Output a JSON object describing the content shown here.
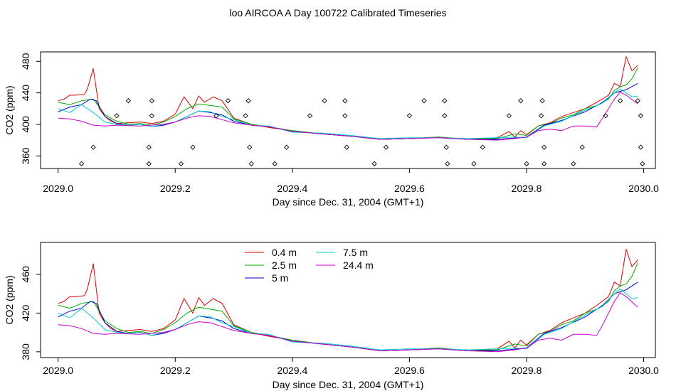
{
  "title": "loo AIRCOA A  Day 100722  Calibrated Timeseries",
  "chart_data": [
    {
      "type": "line",
      "xlabel": "Day since Dec. 31, 2004 (GMT+1)",
      "ylabel": "CO2 (ppm)",
      "xlim": [
        2028.97,
        2030.02
      ],
      "ylim": [
        344,
        492
      ],
      "xticks": [
        2029.0,
        2029.2,
        2029.4,
        2029.6,
        2029.8,
        2030.0
      ],
      "xtick_labels": [
        "2029.0",
        "2029.2",
        "2029.4",
        "2029.6",
        "2029.8",
        "2030.0"
      ],
      "yticks": [
        360,
        400,
        440,
        480
      ],
      "ytick_labels": [
        "360",
        "400",
        "440",
        "480"
      ],
      "legend": null,
      "diamond_markers": {
        "x": [
          2029.04,
          2029.06,
          2029.1,
          2029.12,
          2029.155,
          2029.155,
          2029.16,
          2029.16,
          2029.21,
          2029.23,
          2029.27,
          2029.29,
          2029.32,
          2029.325,
          2029.327,
          2029.33,
          2029.37,
          2029.39,
          2029.43,
          2029.455,
          2029.49,
          2029.49,
          2029.493,
          2029.54,
          2029.56,
          2029.6,
          2029.625,
          2029.66,
          2029.66,
          2029.663,
          2029.665,
          2029.71,
          2029.725,
          2029.77,
          2029.79,
          2029.8,
          2029.825,
          2029.827,
          2029.83,
          2029.83,
          2029.88,
          2029.895,
          2029.935,
          2029.96,
          2029.99,
          2029.995,
          2029.995,
          2029.998
        ],
        "y": [
          350,
          371,
          411,
          430,
          350,
          371,
          411,
          430,
          350,
          371,
          411,
          430,
          411,
          430,
          371,
          350,
          350,
          371,
          411,
          430,
          411,
          430,
          371,
          350,
          371,
          411,
          430,
          411,
          430,
          371,
          350,
          350,
          371,
          411,
          430,
          350,
          411,
          430,
          371,
          350,
          350,
          371,
          411,
          430,
          430,
          411,
          371,
          350
        ]
      }
    },
    {
      "type": "line",
      "xlabel": "Day since Dec. 31, 2004 (GMT+1)",
      "ylabel": "CO2 (ppm)",
      "xlim": [
        2028.97,
        2030.02
      ],
      "ylim": [
        374,
        493
      ],
      "xticks": [
        2029.0,
        2029.2,
        2029.4,
        2029.6,
        2029.8,
        2030.0
      ],
      "xtick_labels": [
        "2029.0",
        "2029.2",
        "2029.4",
        "2029.6",
        "2029.8",
        "2030.0"
      ],
      "yticks": [
        380,
        420,
        460
      ],
      "ytick_labels": [
        "380",
        "420",
        "460"
      ],
      "legend": "top-left",
      "legend_entries": [
        "0.4 m",
        "2.5 m",
        "5 m",
        "7.5 m",
        "24.4 m"
      ]
    }
  ],
  "series": [
    {
      "name": "0.4 m",
      "color": "#dd0000",
      "x": [
        2029.0,
        2029.01,
        2029.02,
        2029.03,
        2029.045,
        2029.05,
        2029.06,
        2029.07,
        2029.08,
        2029.09,
        2029.1,
        2029.12,
        2029.14,
        2029.16,
        2029.18,
        2029.2,
        2029.215,
        2029.23,
        2029.24,
        2029.25,
        2029.265,
        2029.28,
        2029.3,
        2029.33,
        2029.36,
        2029.4,
        2029.45,
        2029.5,
        2029.55,
        2029.6,
        2029.65,
        2029.7,
        2029.75,
        2029.77,
        2029.78,
        2029.79,
        2029.8,
        2029.82,
        2029.84,
        2029.86,
        2029.88,
        2029.9,
        2029.92,
        2029.94,
        2029.95,
        2029.96,
        2029.97,
        2029.98,
        2029.99
      ],
      "y": [
        430,
        432,
        437,
        437,
        438,
        445,
        471,
        420,
        410,
        404,
        401,
        402,
        403,
        401,
        404,
        413,
        435,
        420,
        436,
        428,
        435,
        430,
        408,
        400,
        396,
        392,
        388,
        385,
        381,
        382,
        384,
        381,
        383,
        391,
        384,
        392,
        387,
        398,
        402,
        410,
        415,
        420,
        428,
        437,
        452,
        448,
        486,
        468,
        475
      ]
    },
    {
      "name": "2.5 m",
      "color": "#00aa00",
      "x": [
        2029.0,
        2029.02,
        2029.04,
        2029.06,
        2029.08,
        2029.1,
        2029.12,
        2029.14,
        2029.16,
        2029.18,
        2029.2,
        2029.22,
        2029.24,
        2029.26,
        2029.28,
        2029.3,
        2029.33,
        2029.36,
        2029.4,
        2029.45,
        2029.5,
        2029.55,
        2029.6,
        2029.65,
        2029.7,
        2029.75,
        2029.78,
        2029.8,
        2029.82,
        2029.84,
        2029.86,
        2029.88,
        2029.9,
        2029.92,
        2029.94,
        2029.95,
        2029.96,
        2029.97,
        2029.98,
        2029.99
      ],
      "y": [
        428,
        425,
        430,
        432,
        412,
        404,
        400,
        401,
        399,
        403,
        410,
        420,
        426,
        424,
        422,
        407,
        400,
        397,
        392,
        388,
        385,
        381,
        382,
        384,
        381,
        382,
        388,
        386,
        398,
        401,
        408,
        412,
        420,
        424,
        432,
        443,
        448,
        450,
        458,
        472
      ]
    },
    {
      "name": "5 m",
      "color": "#0000cc",
      "x": [
        2029.0,
        2029.02,
        2029.04,
        2029.055,
        2029.065,
        2029.08,
        2029.1,
        2029.12,
        2029.14,
        2029.16,
        2029.18,
        2029.2,
        2029.22,
        2029.24,
        2029.26,
        2029.28,
        2029.3,
        2029.33,
        2029.36,
        2029.4,
        2029.45,
        2029.5,
        2029.55,
        2029.6,
        2029.65,
        2029.7,
        2029.75,
        2029.8,
        2029.83,
        2029.86,
        2029.9,
        2029.93,
        2029.95,
        2029.97,
        2029.99
      ],
      "y": [
        416,
        422,
        425,
        432,
        430,
        410,
        401,
        399,
        400,
        397,
        399,
        403,
        410,
        417,
        415,
        412,
        404,
        399,
        397,
        391,
        388,
        385,
        381,
        382,
        383,
        381,
        381,
        384,
        399,
        405,
        416,
        428,
        440,
        444,
        452
      ]
    },
    {
      "name": "7.5 m",
      "color": "#00cccc",
      "x": [
        2029.0,
        2029.02,
        2029.04,
        2029.06,
        2029.08,
        2029.1,
        2029.12,
        2029.14,
        2029.16,
        2029.18,
        2029.2,
        2029.22,
        2029.24,
        2029.26,
        2029.28,
        2029.3,
        2029.33,
        2029.36,
        2029.4,
        2029.45,
        2029.5,
        2029.55,
        2029.6,
        2029.65,
        2029.7,
        2029.75,
        2029.78,
        2029.8,
        2029.83,
        2029.86,
        2029.9,
        2029.93,
        2029.95,
        2029.96,
        2029.98,
        2029.99
      ],
      "y": [
        420,
        415,
        425,
        415,
        403,
        400,
        399,
        400,
        397,
        400,
        403,
        410,
        417,
        416,
        410,
        406,
        399,
        398,
        390,
        389,
        386,
        382,
        383,
        383,
        382,
        383,
        384,
        383,
        398,
        404,
        418,
        427,
        440,
        445,
        435,
        436
      ]
    },
    {
      "name": "24.4 m",
      "color": "#cc00cc",
      "x": [
        2029.0,
        2029.02,
        2029.04,
        2029.06,
        2029.08,
        2029.1,
        2029.14,
        2029.18,
        2029.2,
        2029.22,
        2029.24,
        2029.26,
        2029.28,
        2029.3,
        2029.33,
        2029.36,
        2029.4,
        2029.45,
        2029.5,
        2029.55,
        2029.6,
        2029.65,
        2029.7,
        2029.75,
        2029.78,
        2029.8,
        2029.82,
        2029.84,
        2029.86,
        2029.88,
        2029.9,
        2029.92,
        2029.93,
        2029.95,
        2029.96,
        2029.97,
        2029.99
      ],
      "y": [
        408,
        407,
        404,
        399,
        398,
        399,
        398,
        400,
        403,
        408,
        411,
        410,
        406,
        402,
        399,
        397,
        391,
        388,
        385,
        381,
        382,
        383,
        381,
        380,
        382,
        384,
        392,
        394,
        392,
        398,
        398,
        397,
        408,
        432,
        441,
        437,
        426
      ]
    }
  ]
}
